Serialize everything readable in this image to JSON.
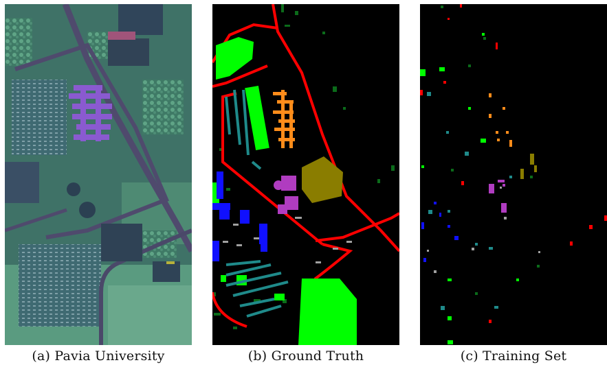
{
  "captions": {
    "a": "(a) Pavia University",
    "b": "(b) Ground Truth",
    "c": "(c) Training Set"
  },
  "colors": {
    "background": "#ffffff",
    "map_background": "#000000",
    "class_red": "#ff0000",
    "class_bright_green": "#00ff00",
    "class_dark_green": "#0b6b1a",
    "class_teal": "#1f8a8a",
    "class_orange": "#ff8c1a",
    "class_olive": "#8a7d00",
    "class_purple": "#b03cc0",
    "class_blue": "#1010ff",
    "class_gray": "#a0a0a0"
  }
}
